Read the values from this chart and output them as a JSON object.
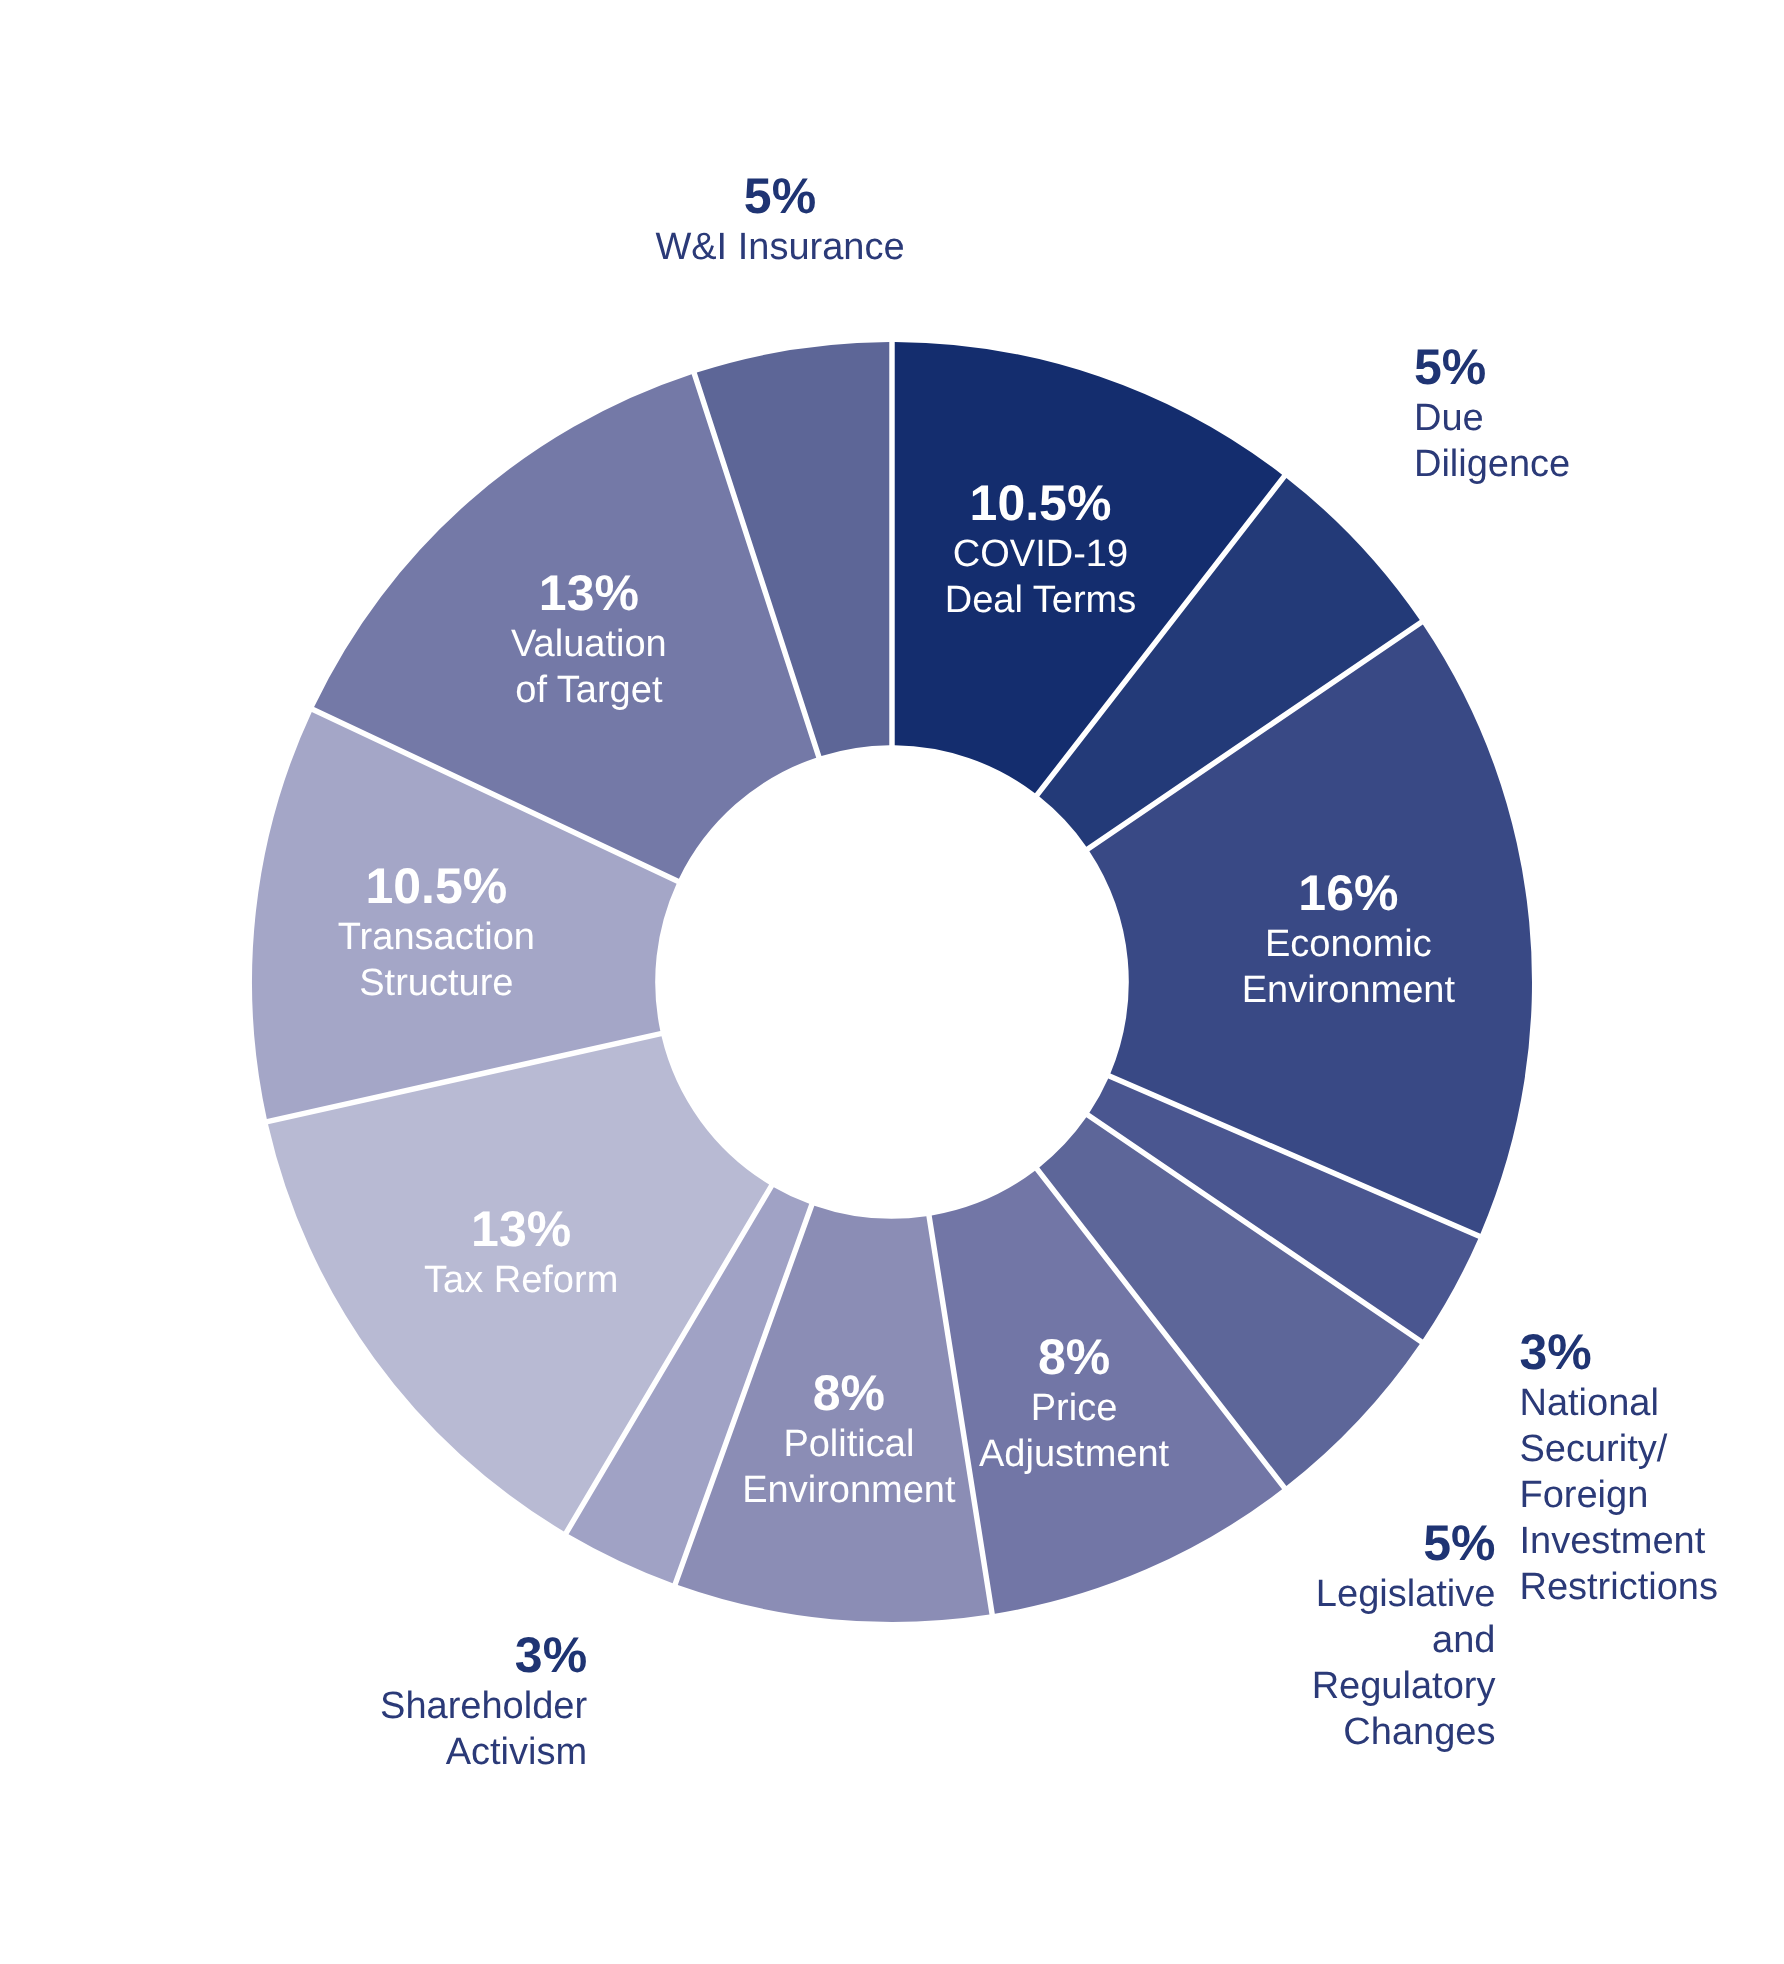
{
  "chart_data": {
    "type": "donut",
    "categories": [
      "COVID-19\nDeal Terms",
      "Due\nDiligence",
      "Economic\nEnvironment",
      "National\nSecurity/\nForeign\nInvestment\nRestrictions",
      "Legislative\nand\nRegulatory\nChanges",
      "Price\nAdjustment",
      "Political\nEnvironment",
      "Shareholder\nActivism",
      "Tax Reform",
      "Transaction\nStructure",
      "Valuation\nof Target",
      "W&I Insurance"
    ],
    "values": [
      10.5,
      5,
      16,
      3,
      5,
      8,
      8,
      3,
      13,
      10.5,
      13,
      5
    ],
    "value_labels": [
      "10.5%",
      "5%",
      "16%",
      "3%",
      "5%",
      "8%",
      "8%",
      "3%",
      "13%",
      "10.5%",
      "13%",
      "5%"
    ],
    "colors": [
      "#142d6e",
      "#233a78",
      "#394985",
      "#4a5690",
      "#5d6699",
      "#7276a6",
      "#8b8db5",
      "#a0a2c5",
      "#b8bad3",
      "#a4a6c7",
      "#7479a7",
      "#5d6697"
    ]
  }
}
